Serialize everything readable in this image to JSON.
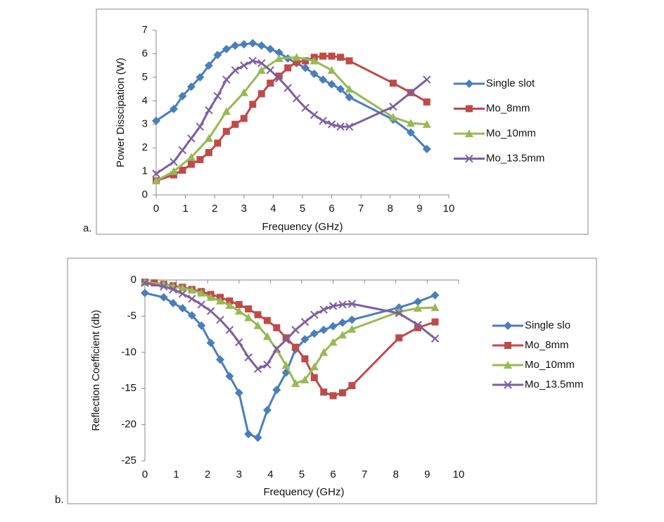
{
  "chart_data": [
    {
      "type": "line",
      "panel_label": "a.",
      "x_label": "Frequency (GHz)",
      "y_label": "Power Disscipation (W)",
      "xlim": [
        0,
        10
      ],
      "xticks": [
        0,
        1,
        2,
        3,
        4,
        5,
        6,
        7,
        8,
        9,
        10
      ],
      "ylim": [
        0,
        7
      ],
      "yticks": [
        0,
        1,
        2,
        3,
        4,
        5,
        6,
        7
      ],
      "grid": false,
      "legend": "right",
      "series": [
        {
          "name": "Single slot",
          "color": "#4a7ebb",
          "marker": "diamond",
          "x": [
            0,
            0.6,
            0.9,
            1.2,
            1.5,
            1.8,
            2.1,
            2.4,
            2.7,
            3.0,
            3.3,
            3.6,
            3.9,
            4.2,
            4.5,
            4.8,
            5.1,
            5.4,
            5.7,
            6.0,
            6.3,
            6.6,
            8.1,
            8.7,
            9.25
          ],
          "values": [
            3.15,
            3.65,
            4.2,
            4.6,
            5.0,
            5.5,
            5.95,
            6.2,
            6.35,
            6.4,
            6.45,
            6.35,
            6.2,
            6.05,
            5.8,
            5.6,
            5.4,
            5.15,
            4.9,
            4.7,
            4.5,
            4.15,
            3.2,
            2.65,
            1.95
          ]
        },
        {
          "name": "Mo_8mm",
          "color": "#be4b48",
          "marker": "square",
          "x": [
            0,
            0.6,
            0.9,
            1.2,
            1.5,
            1.8,
            2.1,
            2.4,
            2.7,
            3.0,
            3.3,
            3.6,
            3.9,
            4.2,
            4.5,
            4.8,
            5.1,
            5.4,
            5.7,
            6.0,
            6.3,
            6.6,
            8.1,
            8.7,
            9.25
          ],
          "values": [
            0.6,
            0.85,
            1.05,
            1.3,
            1.5,
            1.8,
            2.2,
            2.7,
            3.0,
            3.25,
            3.85,
            4.3,
            4.75,
            5.05,
            5.4,
            5.65,
            5.7,
            5.85,
            5.9,
            5.9,
            5.85,
            5.7,
            4.75,
            4.35,
            3.95
          ]
        },
        {
          "name": "Mo_10mm",
          "color": "#98b954",
          "marker": "triangle",
          "x": [
            0,
            0.6,
            1.2,
            1.8,
            2.4,
            3.0,
            3.6,
            4.2,
            4.8,
            5.4,
            6.0,
            6.6,
            8.1,
            8.7,
            9.25
          ],
          "values": [
            0.6,
            1.0,
            1.6,
            2.4,
            3.55,
            4.35,
            5.3,
            5.8,
            5.85,
            5.7,
            5.3,
            4.5,
            3.3,
            3.05,
            3.0
          ]
        },
        {
          "name": "Mo_13.5mm",
          "color": "#7d5fa0",
          "marker": "x",
          "x": [
            0,
            0.6,
            0.9,
            1.2,
            1.5,
            1.8,
            2.1,
            2.4,
            2.7,
            3.0,
            3.3,
            3.6,
            3.9,
            4.2,
            4.5,
            4.8,
            5.1,
            5.4,
            5.7,
            6.0,
            6.3,
            6.6,
            8.1,
            8.7,
            9.25
          ],
          "values": [
            0.9,
            1.4,
            1.9,
            2.4,
            2.9,
            3.6,
            4.2,
            4.9,
            5.3,
            5.5,
            5.7,
            5.6,
            5.3,
            4.95,
            4.55,
            4.1,
            3.7,
            3.4,
            3.15,
            3.0,
            2.9,
            2.9,
            3.75,
            4.35,
            4.9
          ]
        }
      ]
    },
    {
      "type": "line",
      "panel_label": "b.",
      "x_label": "Frequency (GHz)",
      "y_label": "Reflection Coefficient  (db)",
      "xlim": [
        0,
        10
      ],
      "xticks": [
        0,
        1,
        2,
        3,
        4,
        5,
        6,
        7,
        8,
        9,
        10
      ],
      "ylim": [
        -25,
        0
      ],
      "yticks": [
        -25,
        -20,
        -15,
        -10,
        -5,
        0
      ],
      "grid": false,
      "legend": "right",
      "series": [
        {
          "name": "Single slo",
          "color": "#4a7ebb",
          "marker": "diamond",
          "x": [
            0,
            0.6,
            0.9,
            1.2,
            1.5,
            1.8,
            2.1,
            2.4,
            2.7,
            3.0,
            3.3,
            3.6,
            3.9,
            4.2,
            4.5,
            4.8,
            5.1,
            5.4,
            5.7,
            6.0,
            6.3,
            6.6,
            8.1,
            8.7,
            9.25
          ],
          "values": [
            -1.8,
            -2.4,
            -3.2,
            -3.9,
            -4.9,
            -6.3,
            -8.7,
            -11,
            -13.3,
            -15.6,
            -21.3,
            -21.8,
            -18,
            -15.2,
            -12.8,
            -9.6,
            -8.2,
            -7.4,
            -6.9,
            -6.4,
            -5.9,
            -5.5,
            -3.8,
            -3.0,
            -2.1
          ]
        },
        {
          "name": "Mo_8mm",
          "color": "#be4b48",
          "marker": "square",
          "x": [
            0,
            0.3,
            0.6,
            0.9,
            1.2,
            1.5,
            1.8,
            2.1,
            2.4,
            2.7,
            3.0,
            3.3,
            3.6,
            3.9,
            4.2,
            4.5,
            4.8,
            5.1,
            5.4,
            5.7,
            6.0,
            6.3,
            6.6,
            8.1,
            8.7,
            9.25
          ],
          "values": [
            -0.3,
            -0.4,
            -0.6,
            -0.8,
            -1.0,
            -1.3,
            -1.6,
            -2.0,
            -2.4,
            -2.9,
            -3.4,
            -4.0,
            -4.8,
            -5.6,
            -6.6,
            -8.0,
            -9.3,
            -10.9,
            -13.5,
            -15.5,
            -16.0,
            -15.6,
            -14.6,
            -8.0,
            -6.6,
            -5.8
          ]
        },
        {
          "name": "Mo_10mm",
          "color": "#98b954",
          "marker": "triangle",
          "x": [
            0,
            0.6,
            0.9,
            1.2,
            1.5,
            1.8,
            2.1,
            2.4,
            2.7,
            3.0,
            3.3,
            3.6,
            3.9,
            4.2,
            4.5,
            4.8,
            5.1,
            5.4,
            5.7,
            6.0,
            6.3,
            6.6,
            8.1,
            8.7,
            9.25
          ],
          "values": [
            -0.3,
            -0.6,
            -0.9,
            -1.1,
            -1.4,
            -1.8,
            -2.4,
            -2.9,
            -3.5,
            -4.3,
            -5.2,
            -6.3,
            -7.8,
            -9.6,
            -11.8,
            -14.3,
            -13.8,
            -12,
            -10,
            -8.6,
            -7.6,
            -6.8,
            -4.4,
            -3.9,
            -3.8
          ]
        },
        {
          "name": "Mo_13.5mm",
          "color": "#7d5fa0",
          "marker": "x",
          "x": [
            0,
            0.6,
            0.9,
            1.2,
            1.5,
            1.8,
            2.1,
            2.4,
            2.7,
            3.0,
            3.3,
            3.6,
            3.9,
            4.2,
            4.5,
            4.8,
            5.1,
            5.4,
            5.7,
            6.0,
            6.3,
            6.6,
            8.1,
            8.7,
            9.25
          ],
          "values": [
            -0.4,
            -0.9,
            -1.3,
            -1.9,
            -2.6,
            -3.4,
            -4.3,
            -5.5,
            -6.9,
            -8.6,
            -10.7,
            -12.3,
            -11.7,
            -9.5,
            -8.3,
            -6.9,
            -5.8,
            -4.8,
            -4.1,
            -3.6,
            -3.4,
            -3.3,
            -4.6,
            -6.2,
            -8.1
          ]
        }
      ]
    }
  ]
}
